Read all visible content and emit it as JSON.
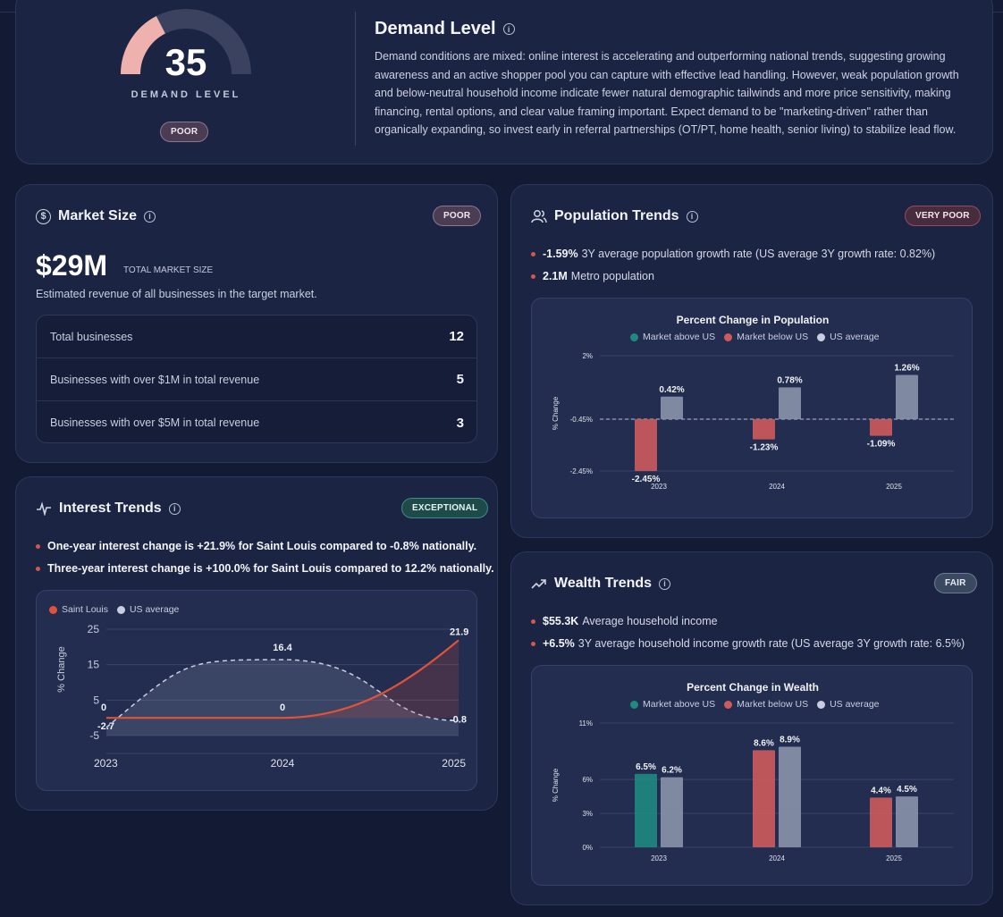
{
  "demand": {
    "score": "35",
    "label": "DEMAND LEVEL",
    "badge": "POOR",
    "title": "Demand Level",
    "gauge_fraction": 0.35,
    "description": "Demand conditions are mixed: online interest is accelerating and outperforming national trends, suggesting growing awareness and an active shopper pool you can capture with effective lead handling. However, weak population growth and below-neutral household income indicate fewer natural demographic tailwinds and more price sensitivity, making financing, rental options, and clear value framing important. Expect demand to be \"marketing-driven\" rather than organically expanding, so invest early in referral partnerships (OT/PT, home health, senior living) to stabilize lead flow."
  },
  "market_size": {
    "title": "Market Size",
    "badge": "POOR",
    "value": "$29M",
    "value_label": "TOTAL MARKET SIZE",
    "subtitle": "Estimated revenue of all businesses in the target market.",
    "rows": [
      {
        "label": "Total businesses",
        "value": "12"
      },
      {
        "label": "Businesses with over $1M in total revenue",
        "value": "5"
      },
      {
        "label": "Businesses with over $5M in total revenue",
        "value": "3"
      }
    ]
  },
  "interest": {
    "title": "Interest Trends",
    "badge": "EXCEPTIONAL",
    "bullets": [
      "One-year interest change is +21.9% for Saint Louis compared to -0.8% nationally.",
      "Three-year interest change is +100.0% for Saint Louis compared to 12.2% nationally."
    ],
    "chart_data": {
      "type": "line",
      "x": [
        "2023",
        "2024",
        "2025"
      ],
      "ylabel": "% Change",
      "yticks": [
        "25",
        "15",
        "5",
        "-5"
      ],
      "ylim": [
        -5,
        25
      ],
      "series": [
        {
          "name": "Saint Louis",
          "values": [
            0,
            0,
            21.9
          ],
          "labels": [
            "0",
            "0",
            "21.9"
          ],
          "color": "#e0533b"
        },
        {
          "name": "US average",
          "values": [
            -2.7,
            16.4,
            -0.8
          ],
          "labels": [
            "-2.7",
            "16.4",
            "-0.8"
          ],
          "color": "#c8cde0"
        }
      ]
    }
  },
  "population": {
    "title": "Population Trends",
    "badge": "VERY POOR",
    "bullets": [
      {
        "bold": "-1.59%",
        "text": "3Y average population growth rate (US average 3Y growth rate: 0.82%)"
      },
      {
        "bold": "2.1M",
        "text": "Metro population"
      }
    ],
    "chart_data": {
      "type": "bar",
      "title": "Percent Change in Population",
      "legend": [
        "Market above US",
        "Market below US",
        "US average"
      ],
      "ylabel": "% Change",
      "yticks": [
        "2%",
        "-0.45%",
        "-2.45%"
      ],
      "ylim": [
        -2.45,
        2
      ],
      "categories": [
        "2023",
        "2024",
        "2025"
      ],
      "series": [
        {
          "name": "Market",
          "values": [
            -2.45,
            -1.23,
            -1.09
          ],
          "labels": [
            "-2.45%",
            "-1.23%",
            "-1.09%"
          ]
        },
        {
          "name": "US average",
          "values": [
            0.42,
            0.78,
            1.26
          ],
          "labels": [
            "0.42%",
            "0.78%",
            "1.26%"
          ]
        }
      ]
    }
  },
  "wealth": {
    "title": "Wealth Trends",
    "badge": "FAIR",
    "bullets": [
      {
        "bold": "$55.3K",
        "text": "Average household income"
      },
      {
        "bold": "+6.5%",
        "text": "3Y average household income growth rate (US average 3Y growth rate: 6.5%)"
      }
    ],
    "chart_data": {
      "type": "bar",
      "title": "Percent Change in Wealth",
      "legend": [
        "Market above US",
        "Market below US",
        "US average"
      ],
      "ylabel": "% Change",
      "yticks": [
        "11%",
        "6%",
        "3%",
        "0%"
      ],
      "ylim": [
        0,
        11
      ],
      "categories": [
        "2023",
        "2024",
        "2025"
      ],
      "series": [
        {
          "name": "Market",
          "values": [
            6.5,
            8.6,
            4.4
          ],
          "labels": [
            "6.5%",
            "8.6%",
            "4.4%"
          ]
        },
        {
          "name": "US average",
          "values": [
            6.2,
            8.9,
            4.5
          ],
          "labels": [
            "6.2%",
            "8.9%",
            "4.5%"
          ]
        }
      ]
    }
  },
  "colors": {
    "above": "#1f8a80",
    "below": "#cd5b5b",
    "us": "#c8cde0"
  }
}
